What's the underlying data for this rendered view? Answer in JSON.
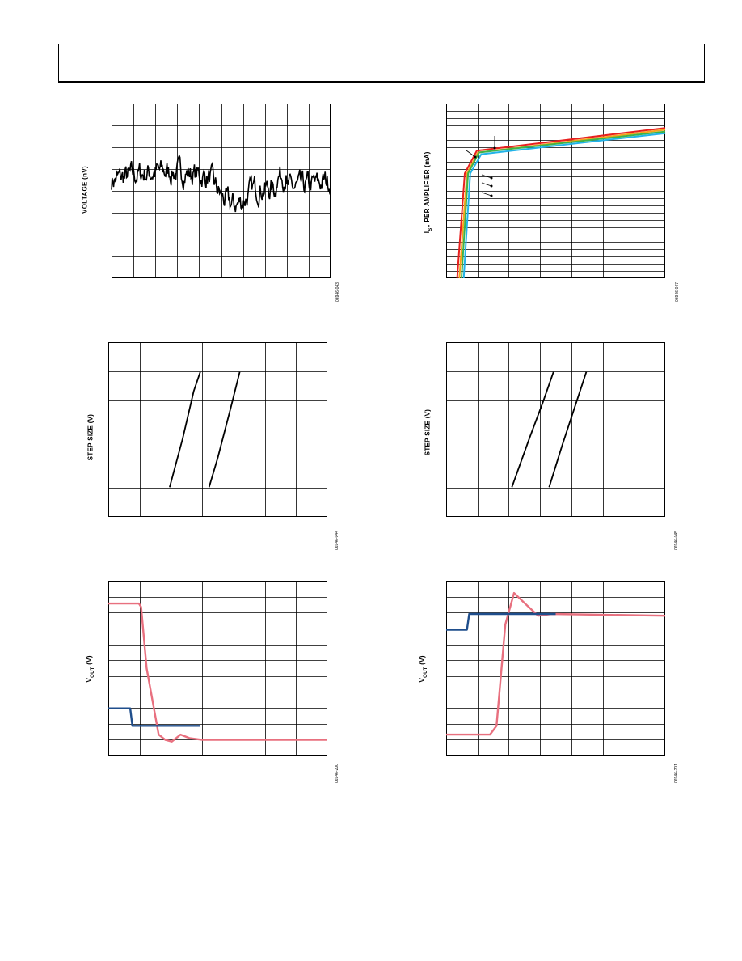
{
  "page": {},
  "chart_data": [
    {
      "type": "line",
      "ylabel": "VOLTAGE (nV)",
      "fig_id": "06946-043",
      "grid": "on",
      "series": [
        {
          "color": "#000000",
          "x": [],
          "y": []
        }
      ]
    },
    {
      "type": "line",
      "ylabel": "I SY PER AMPLIFIER (mA)",
      "ylabel_main": "I",
      "ylabel_sub": "SY",
      "ylabel_rest": " PER AMPLIFIER (mA)",
      "fig_id": "06946-047",
      "grid": "on",
      "series": [
        {
          "color": "#e8201e",
          "x": [
            0.05,
            0.085,
            0.14,
            1.0
          ],
          "y": [
            0.0,
            0.6,
            0.73,
            0.86
          ]
        },
        {
          "color": "#f7a21b",
          "x": [
            0.06,
            0.095,
            0.145,
            1.0
          ],
          "y": [
            0.0,
            0.6,
            0.72,
            0.85
          ]
        },
        {
          "color": "#3cb44b",
          "x": [
            0.07,
            0.1,
            0.15,
            1.0
          ],
          "y": [
            0.0,
            0.6,
            0.72,
            0.84
          ]
        },
        {
          "color": "#22b3e8",
          "x": [
            0.08,
            0.11,
            0.16,
            1.0
          ],
          "y": [
            0.0,
            0.6,
            0.71,
            0.83
          ]
        }
      ]
    },
    {
      "type": "line",
      "ylabel": "STEP SIZE (V)",
      "fig_id": "06946-044",
      "grid": "on",
      "series": [
        {
          "color": "#000000",
          "x": [
            0.28,
            0.34,
            0.39,
            0.42
          ],
          "y": [
            0.17,
            0.45,
            0.72,
            0.83
          ]
        },
        {
          "color": "#000000",
          "x": [
            0.46,
            0.5,
            0.56,
            0.6
          ],
          "y": [
            0.17,
            0.34,
            0.63,
            0.83
          ]
        }
      ]
    },
    {
      "type": "line",
      "ylabel": "STEP SIZE (V)",
      "fig_id": "06946-045",
      "grid": "on",
      "series": [
        {
          "color": "#000000",
          "x": [
            0.3,
            0.38,
            0.44,
            0.49
          ],
          "y": [
            0.17,
            0.45,
            0.65,
            0.83
          ]
        },
        {
          "color": "#000000",
          "x": [
            0.47,
            0.53,
            0.59,
            0.64
          ],
          "y": [
            0.17,
            0.41,
            0.64,
            0.83
          ]
        }
      ]
    },
    {
      "type": "line",
      "ylabel_main": "V",
      "ylabel_sub": "OUT",
      "ylabel_rest": " (V)",
      "fig_id": "06946-200",
      "grid": "on",
      "series": [
        {
          "color": "#e8707f",
          "x": [
            0.0,
            0.14,
            0.15,
            0.175,
            0.23,
            0.26,
            0.29,
            0.33,
            0.37,
            0.43,
            1.0
          ],
          "y": [
            0.87,
            0.87,
            0.85,
            0.5,
            0.12,
            0.09,
            0.08,
            0.12,
            0.1,
            0.09,
            0.09
          ]
        },
        {
          "color": "#1f4e8c",
          "x": [
            0.0,
            0.1,
            0.11,
            0.42
          ],
          "y": [
            0.27,
            0.27,
            0.17,
            0.17
          ]
        }
      ]
    },
    {
      "type": "line",
      "ylabel_main": "V",
      "ylabel_sub": "OUT",
      "ylabel_rest": " (V)",
      "fig_id": "06946-201",
      "grid": "on",
      "series": [
        {
          "color": "#e8707f",
          "x": [
            0.0,
            0.2,
            0.23,
            0.27,
            0.31,
            0.36,
            0.42,
            0.48,
            1.0
          ],
          "y": [
            0.12,
            0.12,
            0.17,
            0.75,
            0.93,
            0.87,
            0.8,
            0.81,
            0.8
          ]
        },
        {
          "color": "#1f4e8c",
          "x": [
            0.0,
            0.095,
            0.105,
            0.5
          ],
          "y": [
            0.72,
            0.72,
            0.81,
            0.81
          ]
        }
      ]
    }
  ]
}
